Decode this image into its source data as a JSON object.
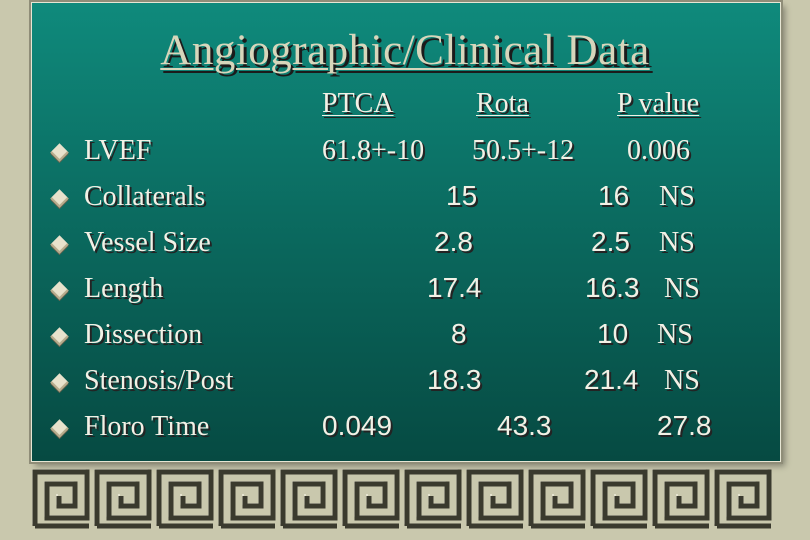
{
  "title": "Angiographic/Clinical Data",
  "headers": {
    "col1": "PTCA",
    "col2": "Rota",
    "col3": "P value"
  },
  "rows": [
    {
      "label": "LVEF",
      "v1": "61.8+-10",
      "v2": "50.5+-12",
      "v3": "0.006"
    },
    {
      "label": "Collaterals",
      "v1": "15",
      "v2": "16",
      "v3": "NS"
    },
    {
      "label": "Vessel Size",
      "v1": "2.8",
      "v2": "2.5",
      "v3": "NS"
    },
    {
      "label": "Length",
      "v1": "17.4",
      "v2": "16.3",
      "v3": "NS"
    },
    {
      "label": "Dissection",
      "v1": "8",
      "v2": "10",
      "v3": "NS"
    },
    {
      "label": "Stenosis/Post",
      "v1": "18.3",
      "v2": "21.4",
      "v3": "NS"
    },
    {
      "label": "Floro Time",
      "v1": "0.049",
      "v2": "43.3",
      "v3": "27.8"
    }
  ],
  "colors": {
    "panel": "#0b6c61",
    "frame": "#c9c8ad",
    "title": "#d7d6bb",
    "text": "#f2f1e6"
  },
  "icons": {
    "bullet": "diamond-bullet-icon",
    "border": "greek-key-border"
  }
}
